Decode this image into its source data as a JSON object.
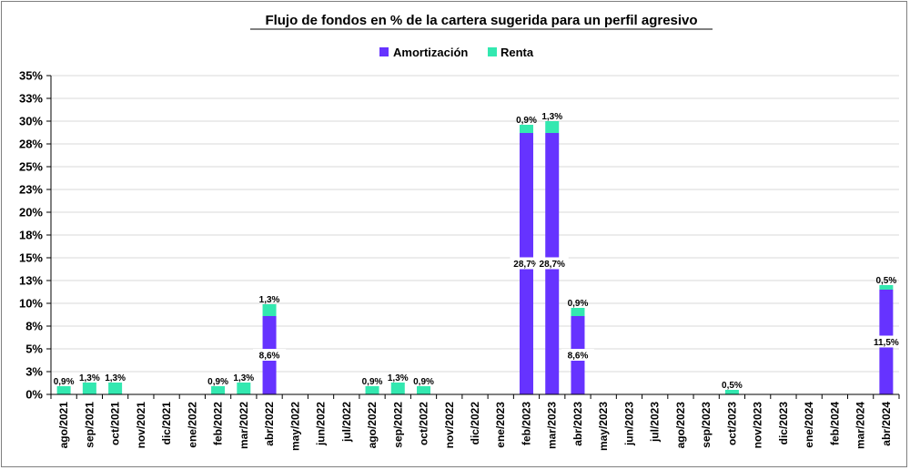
{
  "chart_data": {
    "type": "bar",
    "stacked": true,
    "title": "Flujo de fondos en % de la cartera sugerida para un perfil agresivo",
    "legend": {
      "position": "top",
      "items": [
        "Amortización",
        "Renta"
      ]
    },
    "colors": {
      "Amortización": "#6633ff",
      "Renta": "#33e8b0"
    },
    "grid": true,
    "ylim": [
      0,
      35
    ],
    "yticks": [
      "0%",
      "3%",
      "5%",
      "8%",
      "10%",
      "13%",
      "15%",
      "18%",
      "20%",
      "23%",
      "25%",
      "28%",
      "30%",
      "33%",
      "35%"
    ],
    "categories": [
      "ago/2021",
      "sep/2021",
      "oct/2021",
      "nov/2021",
      "dic/2021",
      "ene/2022",
      "feb/2022",
      "mar/2022",
      "abr/2022",
      "may/2022",
      "jun/2022",
      "jul/2022",
      "ago/2022",
      "sep/2022",
      "oct/2022",
      "nov/2022",
      "dic/2022",
      "ene/2023",
      "feb/2023",
      "mar/2023",
      "abr/2023",
      "may/2023",
      "jun/2023",
      "jul/2023",
      "ago/2023",
      "sep/2023",
      "oct/2023",
      "nov/2023",
      "dic/2023",
      "ene/2024",
      "feb/2024",
      "mar/2024",
      "abr/2024"
    ],
    "series": [
      {
        "name": "Amortización",
        "values": [
          0,
          0,
          0,
          0,
          0,
          0,
          0,
          0,
          8.6,
          0,
          0,
          0,
          0,
          0,
          0,
          0,
          0,
          0,
          28.7,
          28.7,
          8.6,
          0,
          0,
          0,
          0,
          0,
          0,
          0,
          0,
          0,
          0,
          0,
          11.5
        ],
        "labels": [
          "",
          "",
          "",
          "",
          "",
          "",
          "",
          "",
          "8,6%",
          "",
          "",
          "",
          "",
          "",
          "",
          "",
          "",
          "",
          "28,7%",
          "28,7%",
          "8,6%",
          "",
          "",
          "",
          "",
          "",
          "",
          "",
          "",
          "",
          "",
          "",
          "11,5%"
        ]
      },
      {
        "name": "Renta",
        "values": [
          0.9,
          1.3,
          1.3,
          0,
          0,
          0,
          0.9,
          1.3,
          1.3,
          0,
          0,
          0,
          0.9,
          1.3,
          0.9,
          0,
          0,
          0,
          0.9,
          1.3,
          0.9,
          0,
          0,
          0,
          0,
          0,
          0.5,
          0,
          0,
          0,
          0,
          0,
          0.5
        ],
        "labels": [
          "0,9%",
          "1,3%",
          "1,3%",
          "",
          "",
          "",
          "0,9%",
          "1,3%",
          "1,3%",
          "",
          "",
          "",
          "0,9%",
          "1,3%",
          "0,9%",
          "",
          "",
          "",
          "0,9%",
          "1,3%",
          "0,9%",
          "",
          "",
          "",
          "",
          "",
          "0,5%",
          "",
          "",
          "",
          "",
          "",
          "0,5%"
        ]
      }
    ]
  }
}
